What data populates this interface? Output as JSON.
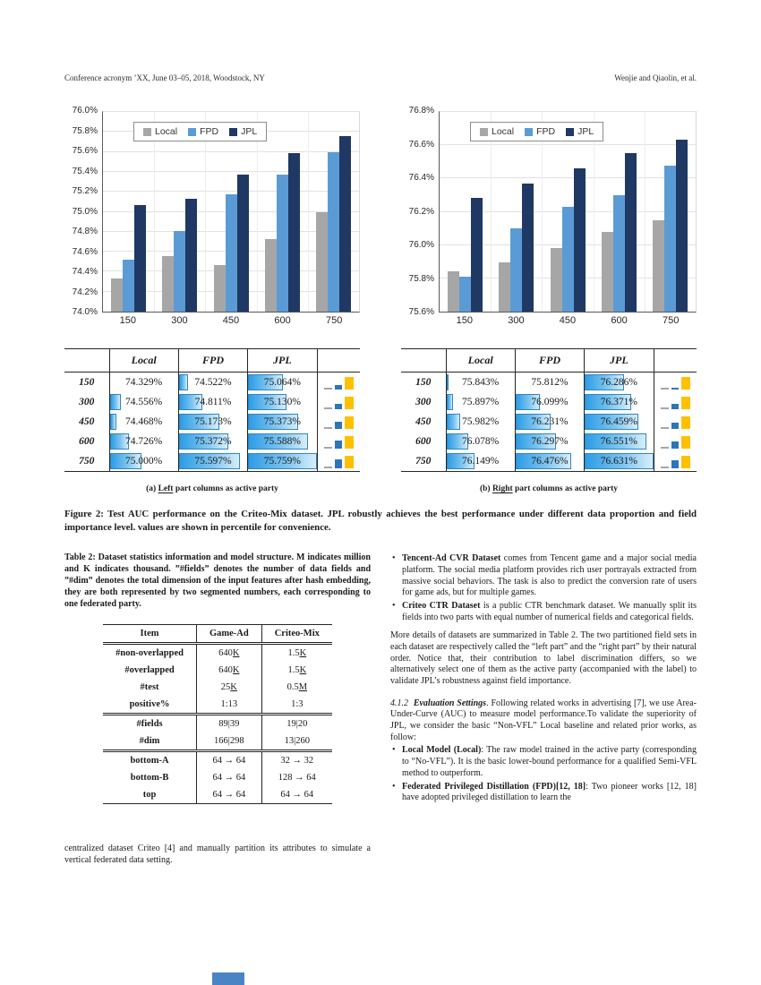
{
  "header": {
    "left": "Conference acronym ’XX, June 03–05, 2018, Woodstock, NY",
    "right": "Wenjie and Qiaolin, et al."
  },
  "colors": {
    "local": "#a6a6a6",
    "fpd": "#5b9bd5",
    "jpl": "#1f3864",
    "databar_border": "#2e86c8",
    "mini_yellow": "#ffc000",
    "mini_blue": "#2e75b6",
    "mini_gray": "#a6a6a6"
  },
  "chart_data": [
    {
      "type": "bar",
      "title": "",
      "categories": [
        "150",
        "300",
        "450",
        "600",
        "750"
      ],
      "series": [
        {
          "name": "Local",
          "color": "#a6a6a6",
          "values": [
            74.329,
            74.556,
            74.468,
            74.726,
            75.0
          ]
        },
        {
          "name": "FPD",
          "color": "#5b9bd5",
          "values": [
            74.522,
            74.811,
            75.173,
            75.372,
            75.597
          ]
        },
        {
          "name": "JPL",
          "color": "#1f3864",
          "values": [
            75.064,
            75.13,
            75.373,
            75.588,
            75.759
          ]
        }
      ],
      "xlabel": "",
      "ylabel": "",
      "ylim": [
        74.0,
        76.0
      ],
      "ytick_step": 0.2,
      "ytick_suffix": "%",
      "grid": true,
      "legend_position": "top-left-inside"
    },
    {
      "type": "bar",
      "title": "",
      "categories": [
        "150",
        "300",
        "450",
        "600",
        "750"
      ],
      "series": [
        {
          "name": "Local",
          "color": "#a6a6a6",
          "values": [
            75.843,
            75.897,
            75.982,
            76.078,
            76.149
          ]
        },
        {
          "name": "FPD",
          "color": "#5b9bd5",
          "values": [
            75.812,
            76.099,
            76.231,
            76.297,
            76.476
          ]
        },
        {
          "name": "JPL",
          "color": "#1f3864",
          "values": [
            76.286,
            76.371,
            76.459,
            76.551,
            76.631
          ]
        }
      ],
      "xlabel": "",
      "ylabel": "",
      "ylim": [
        75.6,
        76.8
      ],
      "ytick_step": 0.2,
      "ytick_suffix": "%",
      "grid": true,
      "legend_position": "top-left-inside"
    }
  ],
  "auc_tables": [
    {
      "col_headers": [
        "Local",
        "FPD",
        "JPL"
      ],
      "row_labels": [
        "150",
        "300",
        "450",
        "600",
        "750"
      ],
      "rows": [
        [
          "74.329%",
          "74.522%",
          "75.064%"
        ],
        [
          "74.556%",
          "74.811%",
          "75.130%"
        ],
        [
          "74.468%",
          "75.173%",
          "75.373%"
        ],
        [
          "74.726%",
          "75.372%",
          "75.588%"
        ],
        [
          "75.000%",
          "75.597%",
          "75.759%"
        ]
      ],
      "mini": [
        [
          2,
          5,
          14
        ],
        [
          2,
          6,
          14
        ],
        [
          2,
          8,
          14
        ],
        [
          2,
          9,
          14
        ],
        [
          2,
          10,
          14
        ]
      ],
      "mini_colors": [
        "#a6a6a6",
        "#2e75b6",
        "#ffc000"
      ]
    },
    {
      "col_headers": [
        "Local",
        "FPD",
        "JPL"
      ],
      "row_labels": [
        "150",
        "300",
        "450",
        "600",
        "750"
      ],
      "rows": [
        [
          "75.843%",
          "75.812%",
          "76.286%"
        ],
        [
          "75.897%",
          "76.099%",
          "76.371%"
        ],
        [
          "75.982%",
          "76.231%",
          "76.459%"
        ],
        [
          "76.078%",
          "76.297%",
          "76.551%"
        ],
        [
          "76.149%",
          "76.476%",
          "76.631%"
        ]
      ],
      "mini": [
        [
          2,
          2,
          14
        ],
        [
          2,
          6,
          14
        ],
        [
          2,
          7,
          14
        ],
        [
          2,
          8,
          14
        ],
        [
          2,
          9,
          14
        ]
      ],
      "mini_colors": [
        "#a6a6a6",
        "#2e75b6",
        "#ffc000"
      ]
    }
  ],
  "figure": {
    "subcaptions": [
      {
        "prefix": "(a) ",
        "underlined": "Left",
        "rest": " part columns as active party"
      },
      {
        "prefix": "(b) ",
        "underlined": "Right",
        "rest": " part columns as active party"
      }
    ],
    "caption": "Figure 2: Test AUC performance on the Criteo-Mix dataset. JPL robustly achieves the best performance under different data proportion and field importance level. values are shown in percentile for convenience."
  },
  "table2": {
    "caption": "Table 2: Dataset statistics information and model structure. M indicates million and K indicates thousand. ”#fields” denotes the number of data fields and ”#dim” denotes the total dimension of the input features after hash embedding, they are both represented by two segmented numbers, each corresponding to one federated party.",
    "columns": [
      "Item",
      "Game-Ad",
      "Criteo-Mix"
    ],
    "sections": [
      [
        [
          "#non-overlapped",
          "640K",
          "1.5K"
        ],
        [
          "#overlapped",
          "640K",
          "1.5K"
        ],
        [
          "#test",
          "25K",
          "0.5M"
        ],
        [
          "positive%",
          "1:13",
          "1:3"
        ]
      ],
      [
        [
          "#fields",
          "89|39",
          "19|20"
        ],
        [
          "#dim",
          "166|298",
          "13|260"
        ]
      ],
      [
        [
          "bottom-A",
          "64 → 64",
          "32 → 32"
        ],
        [
          "bottom-B",
          "64 → 64",
          "128 → 64"
        ],
        [
          "top",
          "64 → 64",
          "64 → 64"
        ]
      ]
    ]
  },
  "left_column": {
    "paragraph": "centralized dataset Criteo [4] and manually partition its attributes to simulate a vertical federated data setting."
  },
  "right_column": {
    "bullets1": [
      {
        "bold": "Tencent-Ad CVR Dataset",
        "text": " comes from Tencent game and a major social media platform. The social media platform provides rich user portrayals extracted from massive social behaviors. The task is also to predict the conversion rate of users for game ads, but for multiple games."
      },
      {
        "bold": "Criteo CTR Dataset",
        "text": " is a public CTR benchmark dataset. We manually split its fields into two parts with equal number of numerical fields and categorical fields."
      }
    ],
    "paragraph1": "More details of datasets are summarized in Table 2. The two partitioned field sets in each dataset are respectively called the “left part” and the “right part” by their natural order. Notice that, their contribution to label discrimination differs, so we alternatively select one of them as the active party (accompanied with the label) to validate JPL’s robustness against field importance.",
    "section": {
      "number": "4.1.2",
      "title": "Evaluation Settings",
      "rest": ". Following related works in advertising [7], we use Area-Under-Curve (AUC) to measure model performance.To validate the superiority of JPL, we consider the basic “Non-VFL” Local baseline and related prior works, as follow:"
    },
    "bullets2": [
      {
        "bold": "Local Model (Local)",
        "text": ": The raw model trained in the active party (corresponding to “No-VFL”). It is the basic lower-bound performance for a qualified Semi-VFL method to outperform."
      },
      {
        "bold": "Federated Privileged Distillation (FPD)[12, 18]",
        "text": ": Two pioneer works [12, 18] have adopted privileged distillation to learn the"
      }
    ]
  }
}
